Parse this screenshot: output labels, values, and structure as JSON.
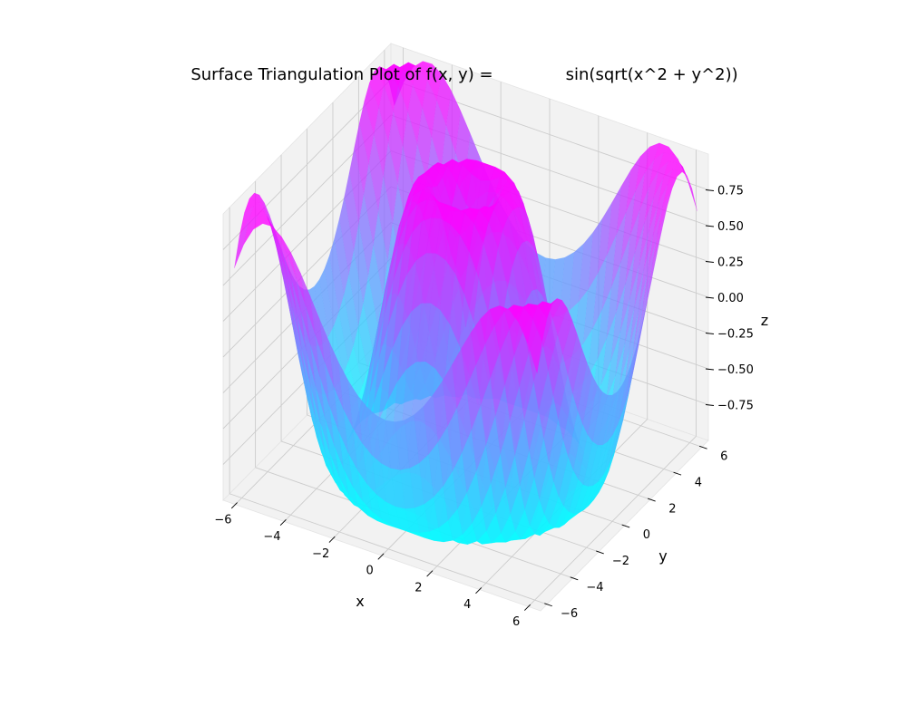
{
  "chart_data": {
    "type": "surface",
    "title": "Surface Triangulation Plot of f(x, y) =              sin(sqrt(x^2 + y^2))",
    "function": "sin(sqrt(x^2 + y^2))",
    "xlabel": "x",
    "ylabel": "y",
    "zlabel": "z",
    "xlim": [
      -6.5,
      6.5
    ],
    "ylim": [
      -6.5,
      6.5
    ],
    "zlim": [
      -1.0,
      1.0
    ],
    "x_ticks": [
      -6,
      -4,
      -2,
      0,
      2,
      4,
      6
    ],
    "x_tick_labels": [
      "−6",
      "−4",
      "−2",
      "0",
      "2",
      "4",
      "6"
    ],
    "y_ticks": [
      -6,
      -4,
      -2,
      0,
      2,
      4,
      6
    ],
    "y_tick_labels": [
      "−6",
      "−4",
      "−2",
      "0",
      "2",
      "4",
      "6"
    ],
    "z_ticks": [
      -0.75,
      -0.5,
      -0.25,
      0.0,
      0.25,
      0.5,
      0.75
    ],
    "z_tick_labels": [
      "−0.75",
      "−0.50",
      "−0.25",
      "0.00",
      "0.25",
      "0.50",
      "0.75"
    ],
    "colormap": "cool",
    "colormap_low": "#00ffff",
    "colormap_high": "#ff00ff",
    "surface_alpha": 0.8,
    "grid": true,
    "pane_color": "#f2f2f2",
    "grid_color": "#cccccc"
  }
}
